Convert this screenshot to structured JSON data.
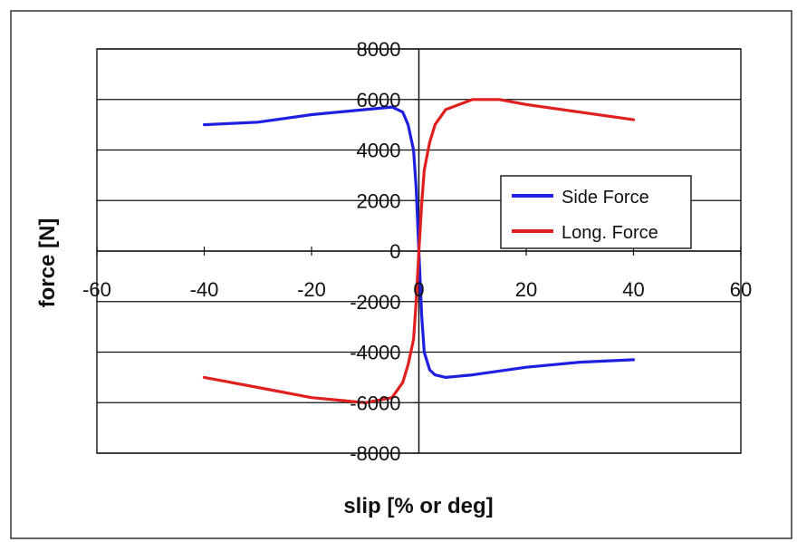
{
  "chart_data": {
    "type": "line",
    "title": "",
    "xlabel": "slip [% or deg]",
    "ylabel": "force [N]",
    "xlim": [
      -60,
      60
    ],
    "ylim": [
      -8000,
      8000
    ],
    "x_ticks": [
      -60,
      -40,
      -20,
      0,
      20,
      40,
      60
    ],
    "y_ticks": [
      8000,
      6000,
      4000,
      2000,
      0,
      -2000,
      -4000,
      -6000,
      -8000
    ],
    "y_tick_labels": [
      "8000",
      "6000",
      "4000",
      "2000",
      "0",
      "-2000",
      "-4000",
      "-6000",
      "-8000"
    ],
    "x_tick_labels": [
      "-60",
      "-40",
      "-20",
      "0",
      "20",
      "40",
      "60"
    ],
    "grid": "horizontal",
    "legend_position": "right",
    "series": [
      {
        "name": "Side Force",
        "color": "#1f1fe0",
        "points": [
          [
            -40,
            5000
          ],
          [
            -30,
            5100
          ],
          [
            -20,
            5400
          ],
          [
            -10,
            5600
          ],
          [
            -5,
            5700
          ],
          [
            -3,
            5500
          ],
          [
            -2,
            5000
          ],
          [
            -1,
            4000
          ],
          [
            -0.5,
            2500
          ],
          [
            0,
            0
          ],
          [
            0.5,
            -2500
          ],
          [
            1,
            -4000
          ],
          [
            2,
            -4700
          ],
          [
            3,
            -4900
          ],
          [
            5,
            -5000
          ],
          [
            10,
            -4900
          ],
          [
            20,
            -4600
          ],
          [
            30,
            -4400
          ],
          [
            40,
            -4300
          ]
        ]
      },
      {
        "name": "Long. Force",
        "color": "#e01f1f",
        "points": [
          [
            -40,
            -5000
          ],
          [
            -30,
            -5400
          ],
          [
            -20,
            -5800
          ],
          [
            -10,
            -6000
          ],
          [
            -5,
            -5800
          ],
          [
            -3,
            -5200
          ],
          [
            -2,
            -4500
          ],
          [
            -1,
            -3500
          ],
          [
            -0.5,
            -2000
          ],
          [
            0,
            0
          ],
          [
            0.5,
            1800
          ],
          [
            1,
            3200
          ],
          [
            2,
            4300
          ],
          [
            3,
            5000
          ],
          [
            5,
            5600
          ],
          [
            10,
            6000
          ],
          [
            15,
            6000
          ],
          [
            20,
            5800
          ],
          [
            30,
            5500
          ],
          [
            40,
            5200
          ]
        ]
      }
    ]
  }
}
